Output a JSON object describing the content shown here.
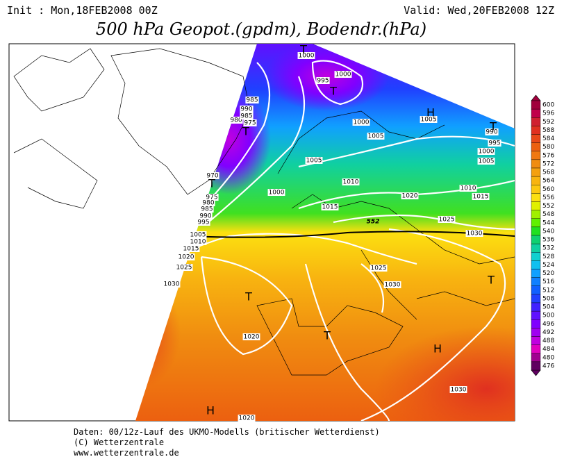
{
  "header": {
    "init": "Init : Mon,18FEB2008 00Z",
    "valid": "Valid: Wed,20FEB2008 12Z",
    "title": "500 hPa Geopot.(gpdm), Bodendr.(hPa)"
  },
  "map": {
    "contour_labels": [
      "1000",
      "1000",
      "995",
      "1000",
      "985",
      "990",
      "980",
      "975",
      "985",
      "970",
      "975",
      "980",
      "985",
      "990",
      "995",
      "1005",
      "1010",
      "1015",
      "1020",
      "1025",
      "1030",
      "1005",
      "1000",
      "1005",
      "1010",
      "1015",
      "1020",
      "1025",
      "1030",
      "1025",
      "1030",
      "1020",
      "1020",
      "1030",
      "1005",
      "990",
      "995",
      "1000",
      "1005",
      "1010",
      "1015"
    ],
    "highlight_label": "552",
    "centers": [
      "T",
      "T",
      "T",
      "T",
      "H",
      "T",
      "T",
      "T",
      "T",
      "H",
      "H"
    ]
  },
  "legend": {
    "levels": [
      600,
      596,
      592,
      588,
      584,
      580,
      576,
      572,
      568,
      564,
      560,
      556,
      552,
      548,
      544,
      540,
      536,
      532,
      528,
      524,
      520,
      516,
      512,
      508,
      504,
      500,
      496,
      492,
      488,
      484,
      480,
      476
    ],
    "colors": [
      "#a0003c",
      "#c0004a",
      "#d02030",
      "#e03020",
      "#e84818",
      "#ec6010",
      "#f07810",
      "#f08c10",
      "#f4a010",
      "#f8b410",
      "#fcc810",
      "#fce010",
      "#e0f000",
      "#a0f000",
      "#60f000",
      "#20e020",
      "#10d070",
      "#10d0a0",
      "#10d0d0",
      "#10c0f0",
      "#10a0ff",
      "#1080ff",
      "#1060ff",
      "#2040ff",
      "#4020ff",
      "#6010ff",
      "#8000ff",
      "#a000f0",
      "#c000e0",
      "#e000c0",
      "#a00090",
      "#600060"
    ]
  },
  "footer": {
    "lines": [
      "Daten: 00/12z-Lauf des UKMO-Modells (britischer Wetterdienst)",
      "(C) Wetterzentrale",
      "www.wetterzentrale.de"
    ]
  }
}
